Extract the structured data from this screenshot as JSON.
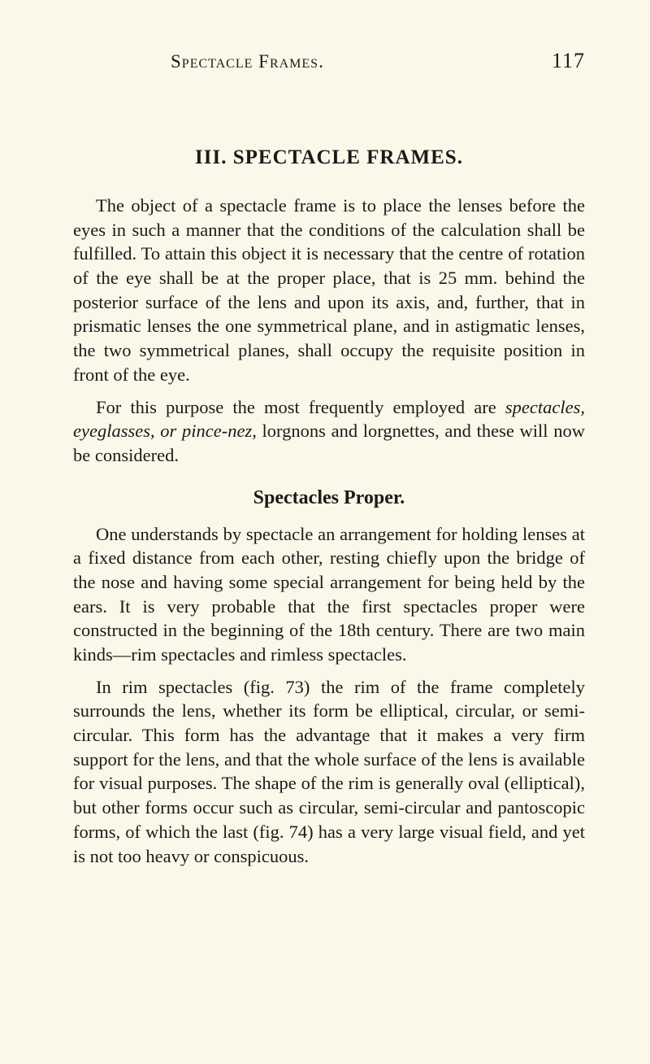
{
  "header": {
    "running_title": "Spectacle Frames.",
    "page_number": "117"
  },
  "chapter": {
    "heading": "III.   SPECTACLE FRAMES."
  },
  "paragraphs": {
    "p1": "The object of a spectacle frame is to place the lenses before the eyes in such a manner that the conditions of the calculation shall be fulfilled. To attain this object it is necessary that the centre of rotation of the eye shall be at the proper place, that is 25 mm. behind the posterior surface of the lens and upon its axis, and, further, that in prismatic lenses the one symmetrical plane, and in astigmatic lenses, the two symmetrical planes, shall occupy the requisite position in front of the eye.",
    "p2_a": "For this purpose the most frequently employed are ",
    "p2_italic": "spectacles, eyeglasses, or pince-nez,",
    "p2_b": " lorgnons and lorgnettes, and these will now be considered.",
    "subheading": "Spectacles Proper.",
    "p3": "One understands by spectacle an arrangement for holding lenses at a fixed distance from each other, resting chiefly upon the bridge of the nose and having some special arrangement for being held by the ears. It is very probable that the first spectacles proper were constructed in the beginning of the 18th century. There are two main kinds—rim spectacles and rimless spectacles.",
    "p4": "In rim spectacles (fig. 73) the rim of the frame completely surrounds the lens, whether its form be elliptical, circular, or semi-circular. This form has the advantage that it makes a very firm support for the lens, and that the whole surface of the lens is available for visual purposes. The shape of the rim is generally oval (elliptical), but other forms occur such as circular, semi-circular and pantoscopic forms, of which the last (fig. 74) has a very large visual field, and yet is not too heavy or conspicuous."
  }
}
